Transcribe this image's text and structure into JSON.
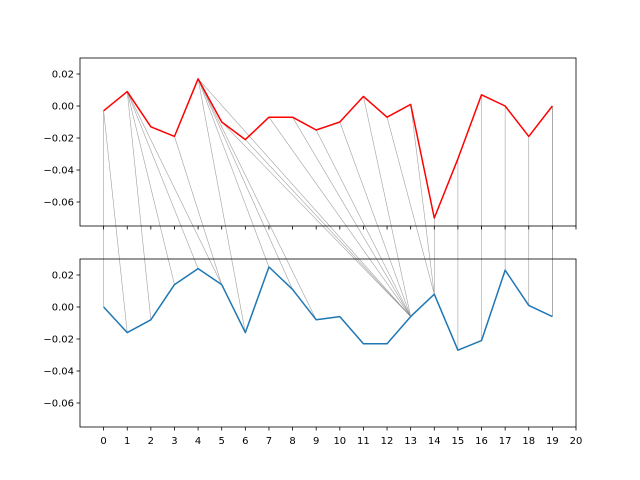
{
  "chart_data": {
    "type": "line",
    "subplots": 2,
    "x": [
      0,
      1,
      2,
      3,
      4,
      5,
      6,
      7,
      8,
      9,
      10,
      11,
      12,
      13,
      14,
      15,
      16,
      17,
      18,
      19
    ],
    "xlim": [
      -1,
      20
    ],
    "ylim": [
      -0.075,
      0.03
    ],
    "yticks": [
      0.02,
      0.0,
      -0.02,
      -0.04,
      -0.06
    ],
    "ytick_labels": [
      "0.02",
      "0.00",
      "−0.02",
      "−0.04",
      "−0.06"
    ],
    "xticks": [
      0,
      1,
      2,
      3,
      4,
      5,
      6,
      7,
      8,
      9,
      10,
      11,
      12,
      13,
      14,
      15,
      16,
      17,
      18,
      19,
      20
    ],
    "xtick_labels": [
      "0",
      "1",
      "2",
      "3",
      "4",
      "5",
      "6",
      "7",
      "8",
      "9",
      "10",
      "11",
      "12",
      "13",
      "14",
      "15",
      "16",
      "17",
      "18",
      "19",
      "20"
    ],
    "series": [
      {
        "subplot": "top",
        "color": "#ff0000",
        "values": [
          -0.003,
          0.009,
          -0.013,
          -0.019,
          0.017,
          -0.01,
          -0.021,
          -0.007,
          -0.007,
          -0.015,
          -0.01,
          0.006,
          -0.007,
          0.001,
          -0.07,
          -0.033,
          0.007,
          0.0,
          -0.019,
          0.0
        ]
      },
      {
        "subplot": "bottom",
        "color": "#1f77b4",
        "values": [
          0.0,
          -0.016,
          -0.008,
          0.014,
          0.024,
          0.014,
          -0.016,
          0.025,
          0.011,
          -0.008,
          -0.006,
          -0.023,
          -0.023,
          -0.006,
          0.008,
          -0.027,
          -0.021,
          0.023,
          0.001,
          -0.006
        ]
      }
    ],
    "connections": [
      [
        0,
        0
      ],
      [
        0,
        1
      ],
      [
        1,
        2
      ],
      [
        1,
        3
      ],
      [
        1,
        4
      ],
      [
        1,
        5
      ],
      [
        3,
        5
      ],
      [
        4,
        6
      ],
      [
        4,
        7
      ],
      [
        4,
        8
      ],
      [
        4,
        9
      ],
      [
        4,
        13
      ],
      [
        5,
        13
      ],
      [
        6,
        13
      ],
      [
        7,
        13
      ],
      [
        8,
        13
      ],
      [
        9,
        13
      ],
      [
        10,
        13
      ],
      [
        11,
        13
      ],
      [
        12,
        14
      ],
      [
        13,
        14
      ],
      [
        14,
        14
      ],
      [
        15,
        15
      ],
      [
        16,
        16
      ],
      [
        17,
        17
      ],
      [
        18,
        18
      ],
      [
        19,
        19
      ],
      [
        19,
        19
      ]
    ],
    "connection_color": "#808080",
    "grid": false,
    "legend": "none"
  }
}
